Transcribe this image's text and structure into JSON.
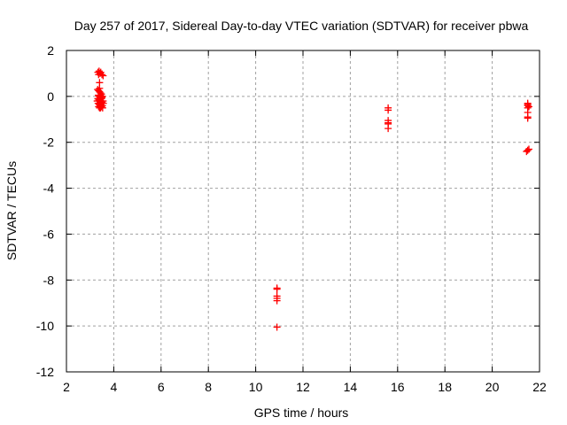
{
  "chart_data": {
    "type": "scatter",
    "title": "Day 257 of 2017, Sidereal Day-to-day VTEC variation (SDTVAR) for receiver pbwa",
    "xlabel": "GPS time / hours",
    "ylabel": "SDTVAR / TECUs",
    "xlim": [
      2,
      22
    ],
    "ylim": [
      -12,
      2
    ],
    "xticks": [
      "2",
      "4",
      "6",
      "8",
      "10",
      "12",
      "14",
      "16",
      "18",
      "20",
      "22"
    ],
    "yticks": [
      "2",
      "0",
      "-2",
      "-4",
      "-6",
      "-8",
      "-10",
      "-12"
    ],
    "grid": true,
    "marker": "plus",
    "color": "#ff0000",
    "series": [
      {
        "name": "SDTVAR",
        "points": [
          [
            3.33,
            1.05
          ],
          [
            3.38,
            1.1
          ],
          [
            3.42,
            1.0
          ],
          [
            3.45,
            1.05
          ],
          [
            3.5,
            0.95
          ],
          [
            3.55,
            0.9
          ],
          [
            3.36,
            0.95
          ],
          [
            3.4,
            0.6
          ],
          [
            3.4,
            0.35
          ],
          [
            3.32,
            0.3
          ],
          [
            3.36,
            0.25
          ],
          [
            3.4,
            0.2
          ],
          [
            3.44,
            0.15
          ],
          [
            3.48,
            0.1
          ],
          [
            3.35,
            0.05
          ],
          [
            3.38,
            0.0
          ],
          [
            3.42,
            -0.05
          ],
          [
            3.46,
            0.0
          ],
          [
            3.5,
            -0.05
          ],
          [
            3.33,
            -0.1
          ],
          [
            3.37,
            -0.15
          ],
          [
            3.41,
            -0.2
          ],
          [
            3.45,
            -0.2
          ],
          [
            3.5,
            -0.25
          ],
          [
            3.55,
            -0.2
          ],
          [
            3.34,
            -0.3
          ],
          [
            3.38,
            -0.35
          ],
          [
            3.42,
            -0.4
          ],
          [
            3.46,
            -0.35
          ],
          [
            3.52,
            -0.4
          ],
          [
            3.56,
            -0.3
          ],
          [
            3.36,
            -0.45
          ],
          [
            3.4,
            -0.5
          ],
          [
            3.44,
            -0.5
          ],
          [
            3.48,
            -0.45
          ],
          [
            3.53,
            -0.5
          ],
          [
            3.44,
            0.05
          ],
          [
            3.48,
            -0.1
          ],
          [
            3.52,
            0.0
          ],
          [
            3.3,
            -0.2
          ],
          [
            10.9,
            -8.35
          ],
          [
            10.9,
            -8.4
          ],
          [
            10.9,
            -8.7
          ],
          [
            10.9,
            -8.8
          ],
          [
            10.9,
            -8.9
          ],
          [
            10.9,
            -10.05
          ],
          [
            15.6,
            -0.5
          ],
          [
            15.6,
            -0.6
          ],
          [
            15.6,
            -1.05
          ],
          [
            15.6,
            -1.15
          ],
          [
            15.6,
            -1.2
          ],
          [
            15.6,
            -1.4
          ],
          [
            21.5,
            -0.3
          ],
          [
            21.5,
            -0.35
          ],
          [
            21.5,
            -0.4
          ],
          [
            21.55,
            -0.45
          ],
          [
            21.5,
            -0.5
          ],
          [
            21.5,
            -0.7
          ],
          [
            21.5,
            -0.9
          ],
          [
            21.5,
            -0.95
          ],
          [
            21.45,
            -2.4
          ],
          [
            21.5,
            -2.35
          ],
          [
            21.55,
            -2.3
          ]
        ]
      }
    ]
  }
}
